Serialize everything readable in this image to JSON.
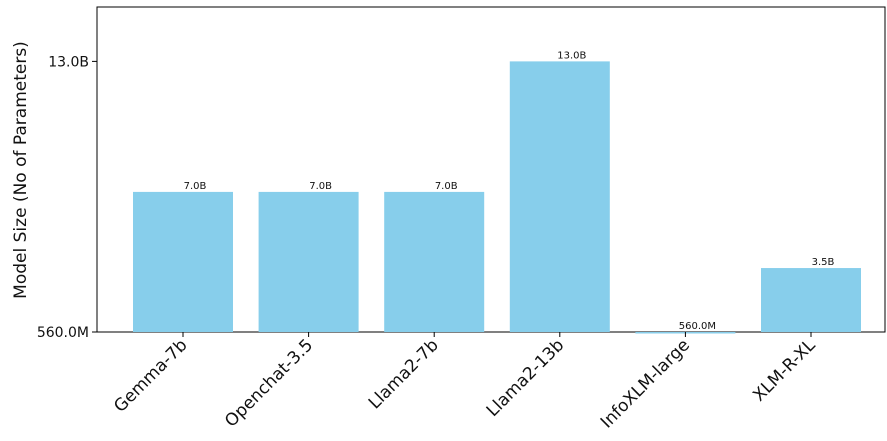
{
  "chart_data": {
    "type": "bar",
    "categories": [
      "Gemma-7b",
      "Openchat-3.5",
      "Llama2-7b",
      "Llama2-13b",
      "InfoXLM-large",
      "XLM-R-XL"
    ],
    "values": [
      7.0,
      7.0,
      7.0,
      13.0,
      0.56,
      3.5
    ],
    "value_unit": "billions of parameters",
    "data_labels": [
      "7.0B",
      "7.0B",
      "7.0B",
      "13.0B",
      "560.0M",
      "3.5B"
    ],
    "ylabel": "Model Size (No of Parameters)",
    "xlabel": "",
    "yticks": [
      0.56,
      13.0
    ],
    "ytick_labels": [
      "560.0M",
      "13.0B"
    ],
    "ylim": [
      0.56,
      15.5
    ],
    "bar_color": "#87ceeb",
    "grid": false,
    "legend": "none"
  }
}
